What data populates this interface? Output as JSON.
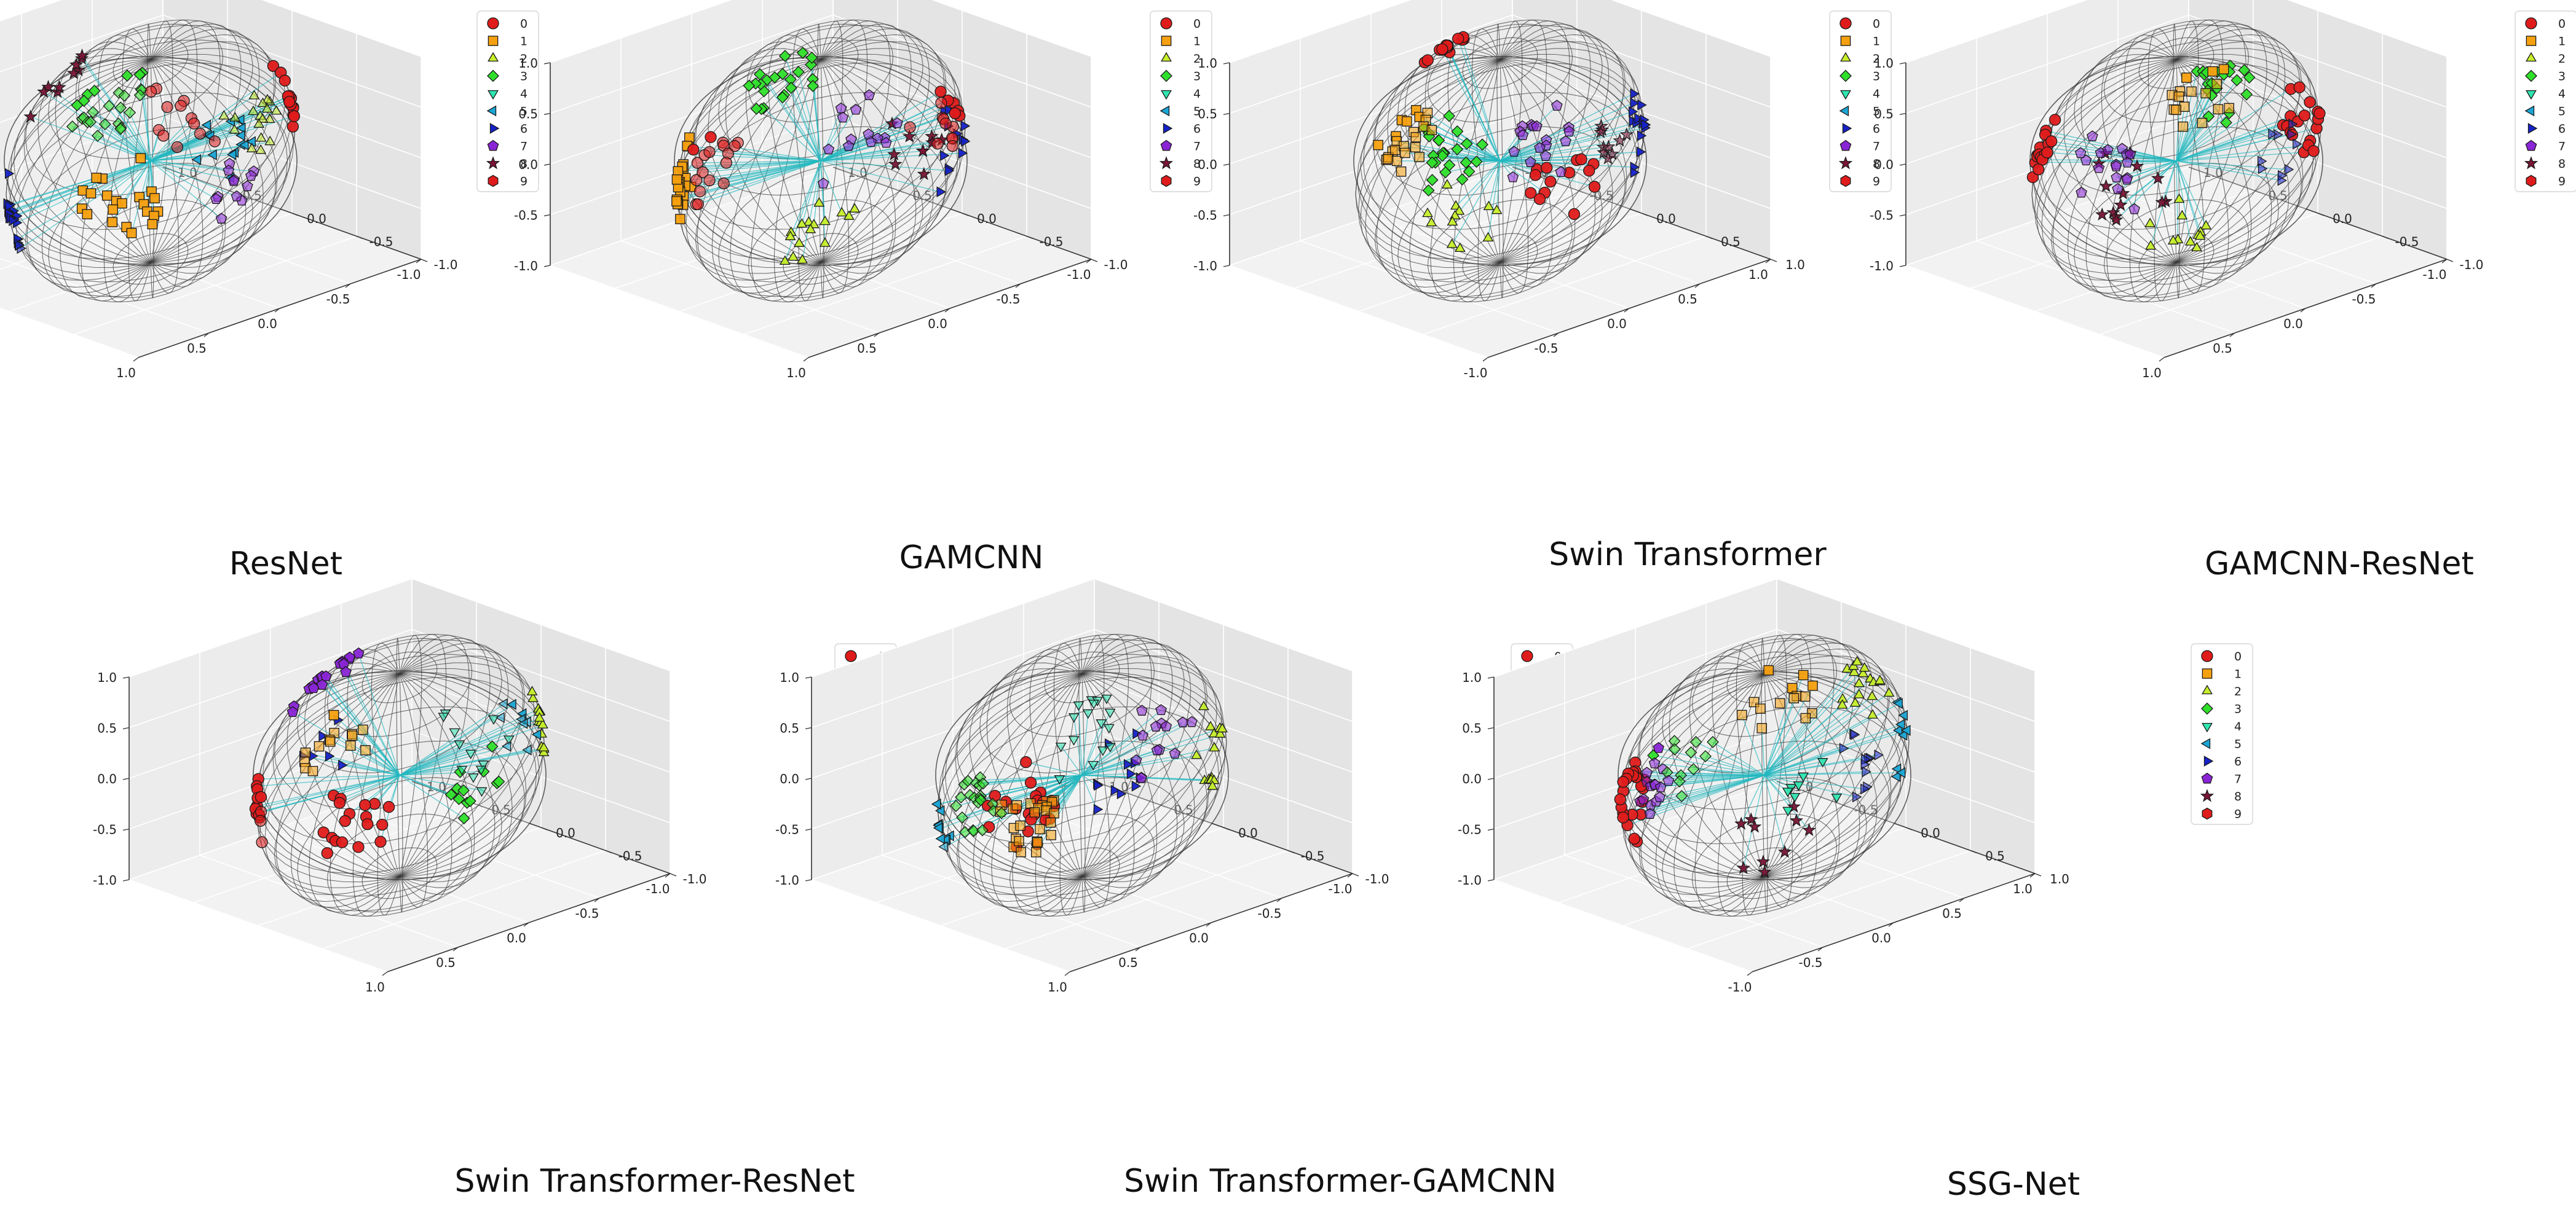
{
  "figure": {
    "panel_titles": [
      "ResNet",
      "GAMCNN",
      "Swin Transformer",
      "GAMCNN-ResNet",
      "Swin Transformer-ResNet",
      "Swin Transformer-GAMCNN",
      "SSG-Net"
    ]
  },
  "chart_data": {
    "type": "scatter",
    "subtype": "3d-scatter-on-unit-sphere",
    "axis_range": [
      -1.0,
      1.0
    ],
    "axis_ticks": [
      "-1.0",
      "-0.5",
      "0.0",
      "0.5",
      "1.0"
    ],
    "grid": true,
    "legend_position": "top-right",
    "classes": [
      {
        "label": "0",
        "marker": "circle",
        "color": "#e01b1b"
      },
      {
        "label": "1",
        "marker": "square",
        "color": "#f5a00f"
      },
      {
        "label": "2",
        "marker": "triangle-up",
        "color": "#c6ef2a"
      },
      {
        "label": "3",
        "marker": "diamond",
        "color": "#2fe02a"
      },
      {
        "label": "4",
        "marker": "triangle-down",
        "color": "#2ee6b0"
      },
      {
        "label": "5",
        "marker": "triangle-left",
        "color": "#1aa6d6"
      },
      {
        "label": "6",
        "marker": "triangle-right",
        "color": "#1522c9"
      },
      {
        "label": "7",
        "marker": "pentagon",
        "color": "#8a25d6"
      },
      {
        "label": "8",
        "marker": "star",
        "color": "#7a1535"
      },
      {
        "label": "9",
        "marker": "hexagon",
        "color": "#e01b1b"
      }
    ],
    "panels": [
      {
        "title": "ResNet",
        "clusters": [
          {
            "class": "3",
            "dir": [
              -0.3,
              0.3,
              0.9
            ],
            "n": 26
          },
          {
            "class": "0",
            "dir": [
              0.2,
              0.5,
              0.85
            ],
            "n": 12
          },
          {
            "class": "2",
            "dir": [
              0.7,
              0.4,
              0.55
            ],
            "n": 18
          },
          {
            "class": "0",
            "dir": [
              0.95,
              -0.2,
              0.1
            ],
            "n": 14
          },
          {
            "class": "5",
            "dir": [
              0.55,
              -0.6,
              -0.6
            ],
            "n": 16
          },
          {
            "class": "1",
            "dir": [
              -0.2,
              -0.5,
              -0.85
            ],
            "n": 22
          },
          {
            "class": "6",
            "dir": [
              -0.95,
              0.1,
              -0.2
            ],
            "n": 20
          },
          {
            "class": "7",
            "dir": [
              0.4,
              0.6,
              0.2
            ],
            "n": 12
          },
          {
            "class": "8",
            "dir": [
              -0.5,
              -0.6,
              0.3
            ],
            "n": 10
          }
        ]
      },
      {
        "title": "GAMCNN",
        "clusters": [
          {
            "class": "0",
            "dir": [
              -0.8,
              0.3,
              0.5
            ],
            "n": 18
          },
          {
            "class": "0",
            "dir": [
              0.85,
              0.3,
              0.4
            ],
            "n": 16
          },
          {
            "class": "1",
            "dir": [
              -0.95,
              -0.2,
              -0.1
            ],
            "n": 24
          },
          {
            "class": "3",
            "dir": [
              -0.2,
              -0.7,
              0.0
            ],
            "n": 22
          },
          {
            "class": "7",
            "dir": [
              0.2,
              0.6,
              0.7
            ],
            "n": 14
          },
          {
            "class": "6",
            "dir": [
              0.9,
              -0.2,
              -0.3
            ],
            "n": 14
          },
          {
            "class": "2",
            "dir": [
              0.0,
              -0.3,
              -0.95
            ],
            "n": 16
          },
          {
            "class": "8",
            "dir": [
              0.6,
              -0.5,
              -0.55
            ],
            "n": 10
          }
        ]
      },
      {
        "title": "Swin Transformer",
        "clusters": [
          {
            "class": "1",
            "dir": [
              -0.7,
              0.3,
              0.65
            ],
            "n": 24
          },
          {
            "class": "7",
            "dir": [
              0.3,
              0.6,
              0.7
            ],
            "n": 18
          },
          {
            "class": "0",
            "dir": [
              -0.3,
              -0.5,
              0.4
            ],
            "n": 14
          },
          {
            "class": "3",
            "dir": [
              -0.3,
              -0.7,
              -0.4
            ],
            "n": 24
          },
          {
            "class": "6",
            "dir": [
              0.95,
              -0.2,
              -0.1
            ],
            "n": 16
          },
          {
            "class": "2",
            "dir": [
              -0.2,
              -0.4,
              -0.9
            ],
            "n": 12
          },
          {
            "class": "0",
            "dir": [
              0.5,
              -0.4,
              -0.8
            ],
            "n": 14
          },
          {
            "class": "8",
            "dir": [
              0.6,
              0.5,
              0.4
            ],
            "n": 10
          }
        ]
      },
      {
        "title": "GAMCNN-ResNet",
        "clusters": [
          {
            "class": "7",
            "dir": [
              -0.5,
              0.6,
              0.6
            ],
            "n": 18
          },
          {
            "class": "0",
            "dir": [
              -0.85,
              -0.1,
              0.3
            ],
            "n": 16
          },
          {
            "class": "1",
            "dir": [
              0.2,
              0.3,
              0.9
            ],
            "n": 16
          },
          {
            "class": "3",
            "dir": [
              0.3,
              -0.7,
              -0.2
            ],
            "n": 20
          },
          {
            "class": "0",
            "dir": [
              0.9,
              -0.3,
              -0.2
            ],
            "n": 18
          },
          {
            "class": "6",
            "dir": [
              0.7,
              0.6,
              0.4
            ],
            "n": 10
          },
          {
            "class": "8",
            "dir": [
              -0.3,
              -0.6,
              -0.7
            ],
            "n": 14
          },
          {
            "class": "2",
            "dir": [
              0.0,
              -0.3,
              -0.95
            ],
            "n": 12
          }
        ]
      },
      {
        "title": "Swin Transformer-ResNet",
        "clusters": [
          {
            "class": "1",
            "dir": [
              -0.5,
              0.4,
              0.75
            ],
            "n": 14
          },
          {
            "class": "4",
            "dir": [
              0.5,
              0.6,
              0.6
            ],
            "n": 12
          },
          {
            "class": "5",
            "dir": [
              0.8,
              0.4,
              0.4
            ],
            "n": 10
          },
          {
            "class": "2",
            "dir": [
              0.95,
              -0.1,
              0.1
            ],
            "n": 14
          },
          {
            "class": "0",
            "dir": [
              -0.95,
              0.0,
              0.0
            ],
            "n": 14
          },
          {
            "class": "7",
            "dir": [
              -0.2,
              -0.2,
              0.3
            ],
            "n": 18
          },
          {
            "class": "0",
            "dir": [
              -0.3,
              -0.5,
              -0.8
            ],
            "n": 18
          },
          {
            "class": "3",
            "dir": [
              0.5,
              -0.5,
              -0.7
            ],
            "n": 12
          },
          {
            "class": "6",
            "dir": [
              -0.5,
              -0.6,
              -0.3
            ],
            "n": 6
          }
        ]
      },
      {
        "title": "Swin Transformer-GAMCNN",
        "clusters": [
          {
            "class": "4",
            "dir": [
              0.0,
              0.5,
              0.86
            ],
            "n": 16
          },
          {
            "class": "3",
            "dir": [
              -0.75,
              0.5,
              0.4
            ],
            "n": 22
          },
          {
            "class": "1",
            "dir": [
              -0.1,
              0.2,
              0.1
            ],
            "n": 26
          },
          {
            "class": "7",
            "dir": [
              0.5,
              0.5,
              0.65
            ],
            "n": 14
          },
          {
            "class": "5",
            "dir": [
              -0.95,
              0.0,
              -0.2
            ],
            "n": 12
          },
          {
            "class": "0",
            "dir": [
              -0.4,
              -0.6,
              -0.7
            ],
            "n": 22
          },
          {
            "class": "2",
            "dir": [
              0.9,
              -0.2,
              -0.3
            ],
            "n": 14
          },
          {
            "class": "6",
            "dir": [
              0.3,
              -0.7,
              -0.6
            ],
            "n": 12
          }
        ]
      },
      {
        "title": "SSG-Net",
        "clusters": [
          {
            "class": "1",
            "dir": [
              0.1,
              0.2,
              0.97
            ],
            "n": 14
          },
          {
            "class": "3",
            "dir": [
              -0.6,
              0.4,
              0.7
            ],
            "n": 12
          },
          {
            "class": "7",
            "dir": [
              -0.6,
              0.3,
              0.4
            ],
            "n": 16
          },
          {
            "class": "0",
            "dir": [
              -0.9,
              -0.3,
              -0.2
            ],
            "n": 24
          },
          {
            "class": "6",
            "dir": [
              0.5,
              0.4,
              0.3
            ],
            "n": 12
          },
          {
            "class": "2",
            "dir": [
              0.3,
              -0.3,
              0.0
            ],
            "n": 18
          },
          {
            "class": "5",
            "dir": [
              0.95,
              -0.2,
              -0.1
            ],
            "n": 10
          },
          {
            "class": "4",
            "dir": [
              0.3,
              -0.6,
              -0.7
            ],
            "n": 8
          },
          {
            "class": "8",
            "dir": [
              0.1,
              -0.3,
              -0.95
            ],
            "n": 10
          }
        ]
      }
    ]
  }
}
